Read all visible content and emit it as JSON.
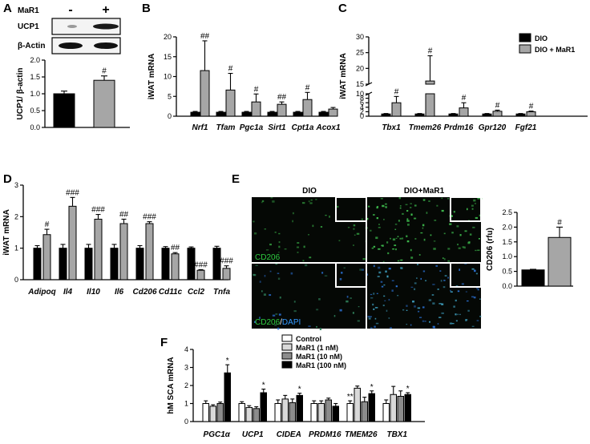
{
  "figure": {
    "panel_letters": [
      "A",
      "B",
      "C",
      "D",
      "E",
      "F"
    ],
    "colors": {
      "dio": "#000000",
      "mar1": "#a6a6a6",
      "white": "#ffffff",
      "grey_light": "#d9d9d9",
      "grey_mid": "#8c8c8c"
    },
    "panel_a": {
      "blot_labels": [
        "MaR1",
        "UCP1",
        "β-Actin"
      ],
      "signs": [
        "-",
        "+"
      ],
      "ylabel": "UCP1/ β-actin"
    },
    "panel_c": {
      "legend": [
        "DIO",
        "DIO + MaR1"
      ]
    },
    "panel_e": {
      "image_titles": [
        "DIO",
        "DIO+MaR1"
      ],
      "stain_top": "CD206",
      "stain_bottom_a": "CD206",
      "stain_bottom_sep": "/",
      "stain_bottom_b": "DAPI"
    },
    "panel_f": {
      "legend": [
        "Control",
        "MaR1 (1 nM)",
        "MaR1 (10 nM)",
        "MaR1 (100 nM)"
      ]
    }
  },
  "chart_data": [
    {
      "panel": "A",
      "type": "bar",
      "categories": [
        "-",
        "+"
      ],
      "values": [
        1.0,
        1.4
      ],
      "errors": [
        0.08,
        0.13
      ],
      "colors": [
        "#000000",
        "#a6a6a6"
      ],
      "significance": [
        "",
        "#"
      ],
      "ylabel": "UCP1/ β-actin",
      "ylim": [
        0,
        2.0
      ],
      "yticks": [
        0.0,
        0.5,
        1.0,
        1.5,
        2.0
      ],
      "ytick_labels": [
        "0.0",
        "0.5",
        "1.0",
        "1.5",
        "2.0"
      ]
    },
    {
      "panel": "B",
      "type": "bar",
      "categories": [
        "Nrf1",
        "Tfam",
        "Pgc1a",
        "Sirt1",
        "Cpt1a",
        "Acox1"
      ],
      "series": [
        {
          "name": "DIO",
          "values": [
            1,
            1,
            1,
            1,
            1,
            1
          ],
          "errors": [
            0.2,
            0.2,
            0.2,
            0.2,
            0.2,
            0.2
          ]
        },
        {
          "name": "DIO + MaR1",
          "values": [
            11.5,
            6.6,
            3.6,
            3.0,
            4.2,
            1.8
          ],
          "errors": [
            7.5,
            4.2,
            2.0,
            0.6,
            1.8,
            0.4
          ]
        }
      ],
      "significance": [
        "##",
        "#",
        "#",
        "##",
        "#",
        ""
      ],
      "ylabel": "iWAT mRNA",
      "ylim": [
        0,
        20
      ],
      "yticks": [
        0,
        5,
        10,
        15,
        20
      ],
      "ytick_labels": [
        "0",
        "5",
        "10",
        "15",
        "20"
      ]
    },
    {
      "panel": "C",
      "type": "bar",
      "categories": [
        "Tbx1",
        "Tmem26",
        "Prdm16",
        "Gpr120",
        "Fgf21"
      ],
      "series": [
        {
          "name": "DIO",
          "values": [
            1,
            1,
            1,
            1,
            1
          ],
          "errors": [
            0.2,
            0.2,
            0.2,
            0.2,
            0.2
          ]
        },
        {
          "name": "DIO + MaR1",
          "values": [
            6.0,
            16.0,
            3.7,
            2.2,
            2.0
          ],
          "errors": [
            2.8,
            8.0,
            2.3,
            0.5,
            0.3
          ]
        }
      ],
      "significance": [
        "#",
        "#",
        "#",
        "#",
        "#"
      ],
      "ylabel": "iWAT mRNA",
      "axis_break": [
        10,
        15
      ],
      "ylim": [
        0,
        30
      ],
      "yticks": [
        0,
        2,
        4,
        6,
        8,
        10,
        15,
        20,
        25,
        30
      ],
      "ytick_labels": [
        "0",
        "2",
        "4",
        "6",
        "8",
        "10",
        "15",
        "20",
        "25",
        "30"
      ],
      "legend": [
        "DIO",
        "DIO + MaR1"
      ],
      "legend_position": "top-right"
    },
    {
      "panel": "D",
      "type": "bar",
      "categories": [
        "Adipoq",
        "Il4",
        "Il10",
        "Il6",
        "Cd206",
        "Cd11c",
        "Ccl2",
        "Tnfa"
      ],
      "series": [
        {
          "name": "DIO",
          "values": [
            1,
            1,
            1,
            1,
            1,
            1,
            1,
            1
          ],
          "errors": [
            0.08,
            0.12,
            0.12,
            0.12,
            0.08,
            0.05,
            0.04,
            0.06
          ]
        },
        {
          "name": "DIO + MaR1",
          "values": [
            1.43,
            2.33,
            1.92,
            1.78,
            1.78,
            0.82,
            0.3,
            0.36
          ],
          "errors": [
            0.17,
            0.28,
            0.15,
            0.14,
            0.06,
            0.04,
            0.02,
            0.08
          ]
        }
      ],
      "significance": [
        "#",
        "###",
        "###",
        "##",
        "###",
        "##",
        "###",
        "###"
      ],
      "ylabel": "iWAT mRNA",
      "ylim": [
        0,
        3
      ],
      "yticks": [
        0,
        1,
        2,
        3
      ],
      "ytick_labels": [
        "0",
        "1",
        "2",
        "3"
      ]
    },
    {
      "panel": "E",
      "type": "bar",
      "categories": [
        "DIO",
        "DIO+MaR1"
      ],
      "values": [
        0.55,
        1.65
      ],
      "errors": [
        0.02,
        0.35
      ],
      "colors": [
        "#000000",
        "#a6a6a6"
      ],
      "significance": [
        "",
        "#"
      ],
      "ylabel": "CD206 (rfu)",
      "ylim": [
        0,
        2.5
      ],
      "yticks": [
        0.0,
        0.5,
        1.0,
        1.5,
        2.0,
        2.5
      ],
      "ytick_labels": [
        "0.0",
        "0.5",
        "1.0",
        "1.5",
        "2.0",
        "2.5"
      ]
    },
    {
      "panel": "F",
      "type": "bar",
      "categories": [
        "PGC1α",
        "UCP1",
        "CIDEA",
        "PRDM16",
        "TMEM26",
        "TBX1"
      ],
      "series": [
        {
          "name": "Control",
          "values": [
            1,
            1,
            1,
            1,
            1,
            1
          ],
          "errors": [
            0.15,
            0.1,
            0.2,
            0.15,
            0.15,
            0.2
          ]
        },
        {
          "name": "MaR1 (1 nM)",
          "values": [
            0.85,
            0.78,
            1.25,
            1.0,
            1.85,
            1.5
          ],
          "errors": [
            0.08,
            0.1,
            0.2,
            0.15,
            0.12,
            0.45
          ]
        },
        {
          "name": "MaR1 (10 nM)",
          "values": [
            1.0,
            0.72,
            1.05,
            1.2,
            1.1,
            1.4
          ],
          "errors": [
            0.08,
            0.1,
            0.2,
            0.1,
            0.25,
            0.3
          ]
        },
        {
          "name": "MaR1 (100 nM)",
          "values": [
            2.7,
            1.6,
            1.45,
            0.85,
            1.55,
            1.5
          ],
          "errors": [
            0.45,
            0.2,
            0.12,
            0.15,
            0.15,
            0.1
          ]
        }
      ],
      "significance": [
        [
          "",
          "",
          "",
          "*"
        ],
        [
          "",
          "",
          "",
          "*"
        ],
        [
          "",
          "",
          "",
          "*"
        ],
        [
          "",
          "",
          "",
          ""
        ],
        [
          "**",
          "",
          "",
          "*"
        ],
        [
          "",
          "",
          "",
          "*"
        ]
      ],
      "ylabel": "hM SCA mRNA",
      "ylim": [
        0,
        4
      ],
      "yticks": [
        0,
        1,
        2,
        3,
        4
      ],
      "ytick_labels": [
        "0",
        "1",
        "2",
        "3",
        "4"
      ],
      "legend": [
        "Control",
        "MaR1 (1 nM)",
        "MaR1 (10 nM)",
        "MaR1 (100 nM)"
      ],
      "legend_position": "top"
    }
  ]
}
